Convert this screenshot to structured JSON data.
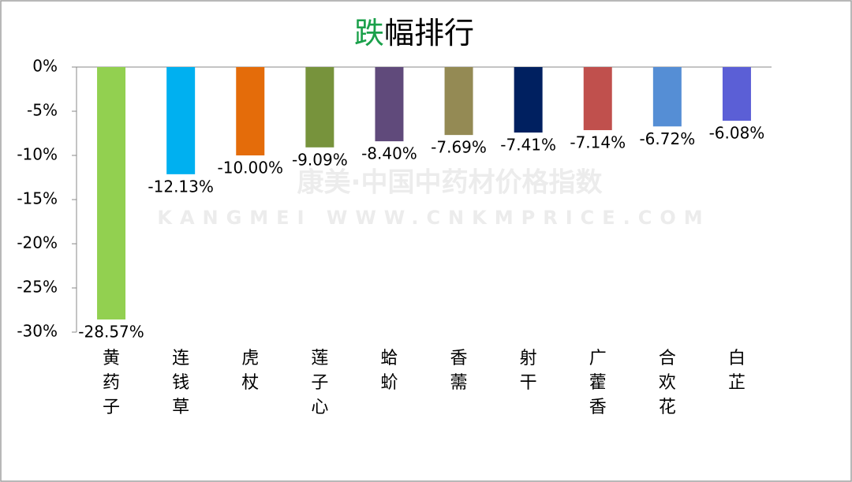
{
  "chart_data": {
    "type": "bar",
    "title": "跌幅排行",
    "title_accent_color": "#1aa04a",
    "watermark": [
      "康美·中国中药材价格指数",
      "KANGMEI WWW.CNKMPRICE.COM"
    ],
    "categories": [
      "黄药子",
      "连钱草",
      "虎杖",
      "莲子心",
      "蛤蚧",
      "香薷",
      "射干",
      "广藿香",
      "合欢花",
      "白芷"
    ],
    "values": [
      -28.57,
      -12.13,
      -10.0,
      -9.09,
      -8.4,
      -7.69,
      -7.41,
      -7.14,
      -6.72,
      -6.08
    ],
    "value_labels": [
      "-28.57%",
      "-12.13%",
      "-10.00%",
      "-9.09%",
      "-8.40%",
      "-7.69%",
      "-7.41%",
      "-7.14%",
      "-6.72%",
      "-6.08%"
    ],
    "colors": [
      "#92d050",
      "#00b0f0",
      "#e46c0a",
      "#77933c",
      "#604a7b",
      "#948a54",
      "#002060",
      "#c0504d",
      "#558ed5",
      "#5b5fd6"
    ],
    "ylim": [
      -30,
      0
    ],
    "yticks": [
      {
        "value": 0,
        "label": "0%"
      },
      {
        "value": -5,
        "label": "-5%"
      },
      {
        "value": -10,
        "label": "-10%"
      },
      {
        "value": -15,
        "label": "-15%"
      },
      {
        "value": -20,
        "label": "-20%"
      },
      {
        "value": -25,
        "label": "-25%"
      },
      {
        "value": -30,
        "label": "-30%"
      }
    ]
  }
}
